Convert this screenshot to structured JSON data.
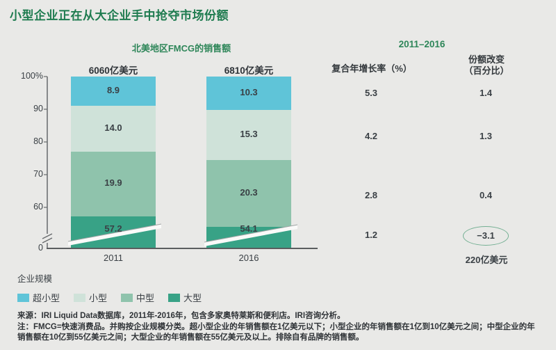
{
  "page": {
    "title": "小型企业正在从大企业手中抢夺市场份额",
    "background_color": "#E9E9E7",
    "title_color": "#1E7B4F"
  },
  "chart_data": {
    "type": "bar",
    "stacked": true,
    "title": "北美地区FMCG的销售额",
    "axis_break": true,
    "axis_break_note": "y轴在0与60之间断开，底部分段被压缩显示",
    "categories": [
      "2011",
      "2016"
    ],
    "totals": [
      "6060亿美元",
      "6810亿美元"
    ],
    "series": [
      {
        "name": "超小型",
        "values": [
          8.9,
          10.3
        ],
        "color": "#5FC4D8"
      },
      {
        "name": "小型",
        "values": [
          14.0,
          15.3
        ],
        "color": "#CFE2D9"
      },
      {
        "name": "中型",
        "values": [
          19.9,
          20.3
        ],
        "color": "#8FC3AC"
      },
      {
        "name": "大型",
        "values": [
          57.2,
          54.1
        ],
        "color": "#38A286"
      }
    ],
    "value_labels": [
      [
        "8.9",
        "14.0",
        "19.9",
        "57.2"
      ],
      [
        "10.3",
        "15.3",
        "20.3",
        "54.1"
      ]
    ],
    "y_ticks": [
      "100%",
      "90",
      "80",
      "70",
      "60",
      "0"
    ],
    "ylim": [
      0,
      100
    ],
    "legend_position": "bottom-left"
  },
  "table": {
    "period": "2011–2016",
    "col1_header": "复合年增长率（%）",
    "col2_header_line1": "份额改变",
    "col2_header_line2": "（百分比）",
    "rows": [
      {
        "segment": "超小型",
        "cagr": "5.3",
        "share_change": "1.4",
        "circled": false
      },
      {
        "segment": "小型",
        "cagr": "4.2",
        "share_change": "1.3",
        "circled": false
      },
      {
        "segment": "中型",
        "cagr": "2.8",
        "share_change": "0.4",
        "circled": false
      },
      {
        "segment": "大型",
        "cagr": "1.2",
        "share_change": "−3.1",
        "circled": true
      }
    ],
    "footnote_value": "220亿美元",
    "circle_color": "#73AF92"
  },
  "legend": {
    "title": "企业规模",
    "items": [
      {
        "label": "超小型",
        "color": "#5FC4D8"
      },
      {
        "label": "小型",
        "color": "#CFE2D9"
      },
      {
        "label": "中型",
        "color": "#8FC3AC"
      },
      {
        "label": "大型",
        "color": "#38A286"
      }
    ]
  },
  "footer": {
    "source_label": "来源：",
    "source_text": "IRI Liquid Data数据库，2011年-2016年，包含多家奥特莱斯和便利店。IRI咨询分析。",
    "note_label": "注：",
    "note_text": "FMCG=快速消费品。并购按企业规模分类。超小型企业的年销售额在1亿美元以下；小型企业的年销售额在1亿到10亿美元之间；中型企业的年销售额在10亿到55亿美元之间；大型企业的年销售额在55亿美元及以上。排除自有品牌的销售额。"
  }
}
